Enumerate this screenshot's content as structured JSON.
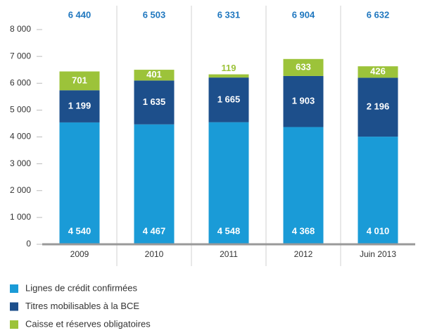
{
  "chart_data": {
    "type": "stacked_bar",
    "categories": [
      "2009",
      "2010",
      "2011",
      "2012",
      "Juin 2013"
    ],
    "series": [
      {
        "name": "Lignes de crédit confirmées",
        "color": "#1a9bd7",
        "values": [
          4540,
          4467,
          4548,
          4368,
          4010
        ],
        "value_labels": [
          "4 540",
          "4 467",
          "4 548",
          "4 368",
          "4 010"
        ]
      },
      {
        "name": "Titres mobilisables à la BCE",
        "color": "#1d4f8b",
        "values": [
          1199,
          1635,
          1665,
          1903,
          2196
        ],
        "value_labels": [
          "1 199",
          "1 635",
          "1 665",
          "1 903",
          "2 196"
        ]
      },
      {
        "name": "Caisse et réserves obligatoires",
        "color": "#9cc33a",
        "values": [
          701,
          401,
          119,
          633,
          426
        ],
        "value_labels": [
          "701",
          "401",
          "119",
          "633",
          "426"
        ]
      }
    ],
    "totals": [
      6440,
      6503,
      6331,
      6904,
      6632
    ],
    "total_labels": [
      "6 440",
      "6 503",
      "6 331",
      "6 904",
      "6 632"
    ],
    "total_color": "#1f77bf",
    "ylim": [
      0,
      8000
    ],
    "yticks": [
      0,
      {
        "value": 1000,
        "label": "1 000"
      },
      {
        "value": 2000,
        "label": "2 000"
      },
      {
        "value": 3000,
        "label": "3 000"
      },
      {
        "value": 4000,
        "label": "4 000"
      },
      {
        "value": 5000,
        "label": "5 000"
      },
      {
        "value": 6000,
        "label": "6 000"
      },
      {
        "value": 7000,
        "label": "7 000"
      },
      {
        "value": 8000,
        "label": "8 000"
      }
    ]
  }
}
